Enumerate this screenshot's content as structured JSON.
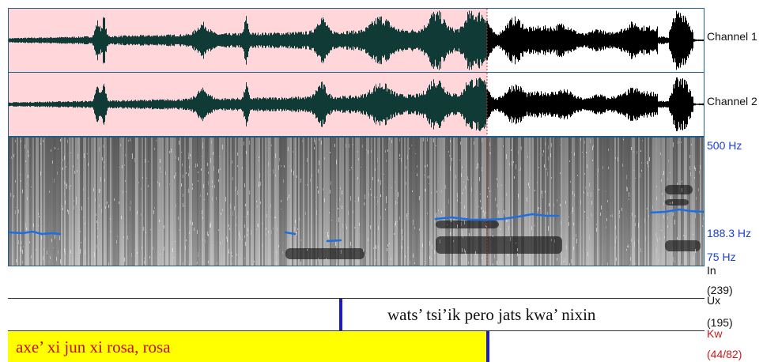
{
  "waveform": {
    "channels": [
      {
        "label": "Channel 1"
      },
      {
        "label": "Channel 2"
      }
    ],
    "selection_color": "#ffd6da",
    "wave_selected_color": "#0f3a36",
    "wave_unselected_color": "#000000"
  },
  "spectrogram": {
    "freq_top": "500 Hz",
    "freq_pitch": "188.3 Hz",
    "freq_bottom": "75 Hz",
    "pitch_color": "#1e6fe0"
  },
  "tiers": {
    "in": {
      "name": "In",
      "count": "(239)"
    },
    "ux": {
      "name": "Ux",
      "count": "(195)",
      "text": "wats’ tsi’ik pero jats kwa’ nixin"
    },
    "kw": {
      "name": "Kw",
      "count": "(44/82)",
      "text": "axe’ xi jun xi rosa, rosa"
    }
  }
}
